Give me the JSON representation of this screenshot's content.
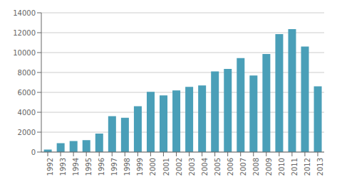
{
  "chart_data": {
    "type": "bar",
    "categories": [
      "1992",
      "1993",
      "1994",
      "1995",
      "1996",
      "1997",
      "1998",
      "1999",
      "2000",
      "2001",
      "2002",
      "2003",
      "2004",
      "2005",
      "2006",
      "2007",
      "2008",
      "2009",
      "2010",
      "2011",
      "2012",
      "2013"
    ],
    "values": [
      250,
      900,
      1100,
      1200,
      1850,
      3600,
      3450,
      4600,
      6050,
      5700,
      6200,
      6550,
      6700,
      8100,
      8350,
      9450,
      7700,
      9850,
      11850,
      12350,
      10600,
      6600
    ],
    "color": "#4a9fb8",
    "ylim": [
      0,
      14000
    ],
    "yticks": [
      0,
      2000,
      4000,
      6000,
      8000,
      10000,
      12000,
      14000
    ],
    "grid": true
  }
}
